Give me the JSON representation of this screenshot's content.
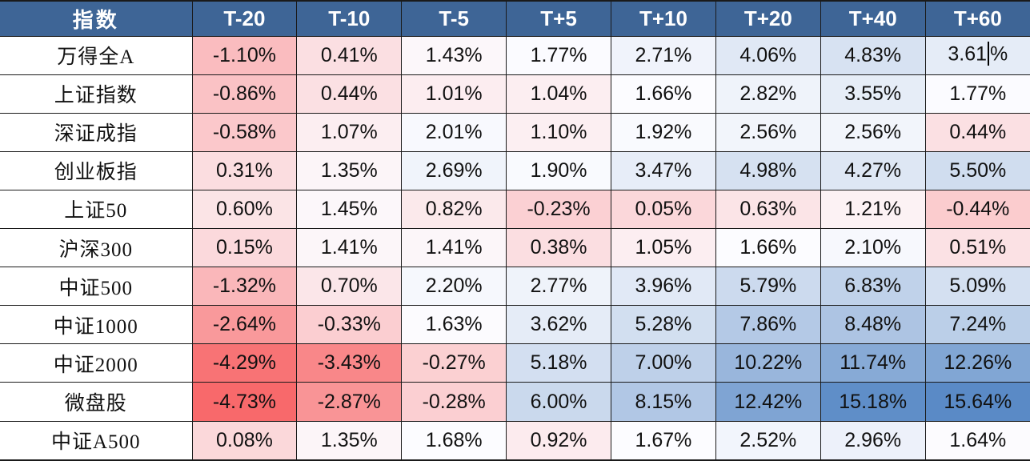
{
  "ui_colors": {
    "header_bg": "#3E6596",
    "header_text": "#FFFFFF",
    "grid_border": "#1A1A1A",
    "cell_text": "#111111"
  },
  "text_cursor": {
    "row": 0,
    "col": 7
  },
  "chart_data": {
    "type": "heatmap",
    "index_label": "指数",
    "columns": [
      "T-20",
      "T-10",
      "T-5",
      "T+5",
      "T+10",
      "T+20",
      "T+40",
      "T+60"
    ],
    "value_format": "+0.00%",
    "rows": [
      {
        "name": "万得全A",
        "values": [
          -1.1,
          0.41,
          1.43,
          1.77,
          2.71,
          4.06,
          4.83,
          3.61
        ]
      },
      {
        "name": "上证指数",
        "values": [
          -0.86,
          0.44,
          1.01,
          1.04,
          1.66,
          2.82,
          3.55,
          1.77
        ]
      },
      {
        "name": "深证成指",
        "values": [
          -0.58,
          1.07,
          2.01,
          1.1,
          1.92,
          2.56,
          2.56,
          0.44
        ]
      },
      {
        "name": "创业板指",
        "values": [
          0.31,
          1.35,
          2.69,
          1.9,
          3.47,
          4.98,
          4.27,
          5.5
        ]
      },
      {
        "name": "上证50",
        "values": [
          0.6,
          1.45,
          0.82,
          -0.23,
          0.05,
          0.63,
          1.21,
          -0.44
        ]
      },
      {
        "name": "沪深300",
        "values": [
          0.15,
          1.41,
          1.41,
          0.38,
          1.05,
          1.66,
          2.1,
          0.51
        ]
      },
      {
        "name": "中证500",
        "values": [
          -1.32,
          0.7,
          2.2,
          2.77,
          3.96,
          5.79,
          6.83,
          5.09
        ]
      },
      {
        "name": "中证1000",
        "values": [
          -2.64,
          -0.33,
          1.63,
          3.62,
          5.28,
          7.86,
          8.48,
          7.24
        ]
      },
      {
        "name": "中证2000",
        "values": [
          -4.29,
          -3.43,
          -0.27,
          5.18,
          7.0,
          10.22,
          11.74,
          12.26
        ]
      },
      {
        "name": "微盘股",
        "values": [
          -4.73,
          -2.87,
          -0.28,
          6.0,
          8.15,
          12.42,
          15.18,
          15.64
        ]
      },
      {
        "name": "中证A500",
        "values": [
          0.08,
          1.35,
          1.68,
          0.92,
          1.67,
          2.52,
          2.96,
          1.64
        ]
      }
    ],
    "color_scale": {
      "min_value": -4.73,
      "mid_value": 1.665,
      "max_value": 15.64,
      "min_color": "#F8696B",
      "mid_color": "#FCFCFF",
      "max_color": "#5A8AC6"
    },
    "legend_position": "none",
    "grid": true
  }
}
